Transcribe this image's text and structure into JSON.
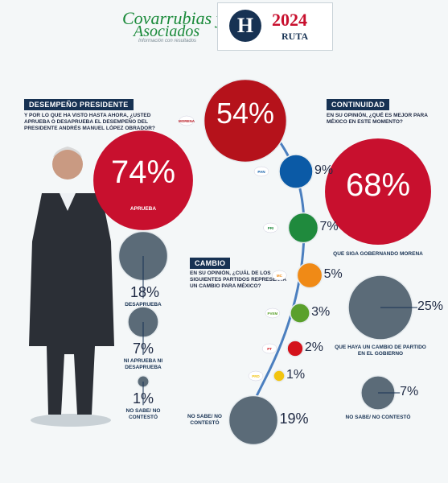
{
  "header": {
    "pollster_line1": "Covarrubias y",
    "pollster_line2": "Asociados",
    "pollster_tagline": "Información con resultados",
    "logo_letter": "H",
    "year": "2024",
    "ruta": "RUTA"
  },
  "sections": {
    "desempeno": {
      "title": "DESEMPEÑO PRESIDENTE",
      "question": "Y POR LO QUE HA VISTO HASTA AHORA, ¿USTED APRUEBA O DESAPRUEBA EL DESEMPEÑO DEL PRESIDENTE ANDRÉS MANUEL LÓPEZ OBRADOR?"
    },
    "cambio": {
      "title": "CAMBIO",
      "question": "EN SU OPINIÓN, ¿CUÁL DE LOS SIGUIENTES PARTIDOS REPRESENTA UN CAMBIO PARA MÉXICO?"
    },
    "continuidad": {
      "title": "CONTINUIDAD",
      "question": "EN SU OPINIÓN, ¿QUÉ ES MEJOR PARA MÉXICO EN ESTE MOMENTO?"
    }
  },
  "chart_data": [
    {
      "type": "bubble",
      "title": "DESEMPEÑO PRESIDENTE",
      "categories": [
        "APRUEBA",
        "DESAPRUEBA",
        "NI APRUEBA NI DESAPRUEBA",
        "NO SABE/ NO CONTESTÓ"
      ],
      "values": [
        74,
        18,
        7,
        1
      ],
      "unit": "%",
      "colors": [
        "#c8102e",
        "#5b6b78",
        "#5b6b78",
        "#5b6b78"
      ]
    },
    {
      "type": "bubble",
      "title": "CAMBIO",
      "categories": [
        "MORENA",
        "PAN",
        "PRI",
        "MC",
        "PVEM",
        "PT",
        "PRD",
        "NO SABE/ NO CONTESTÓ"
      ],
      "values": [
        54,
        9,
        7,
        5,
        3,
        2,
        1,
        19
      ],
      "unit": "%",
      "colors": [
        "#b5121b",
        "#0b5aa6",
        "#1f8a3d",
        "#f08a16",
        "#5aa02c",
        "#d4121b",
        "#f2c40f",
        "#5b6b78"
      ]
    },
    {
      "type": "bubble",
      "title": "CONTINUIDAD",
      "categories": [
        "QUE SIGA GOBERNANDO MORENA",
        "QUE HAYA UN CAMBIO DE PARTIDO EN EL GOBIERNO",
        "NO SABE/ NO CONTESTÓ"
      ],
      "values": [
        68,
        25,
        7
      ],
      "unit": "%",
      "colors": [
        "#c8102e",
        "#5b6b78",
        "#5b6b78"
      ]
    }
  ],
  "party_badges": [
    "MORENA",
    "PAN",
    "PRI",
    "MC",
    "PVEM",
    "PT",
    "PRD"
  ]
}
